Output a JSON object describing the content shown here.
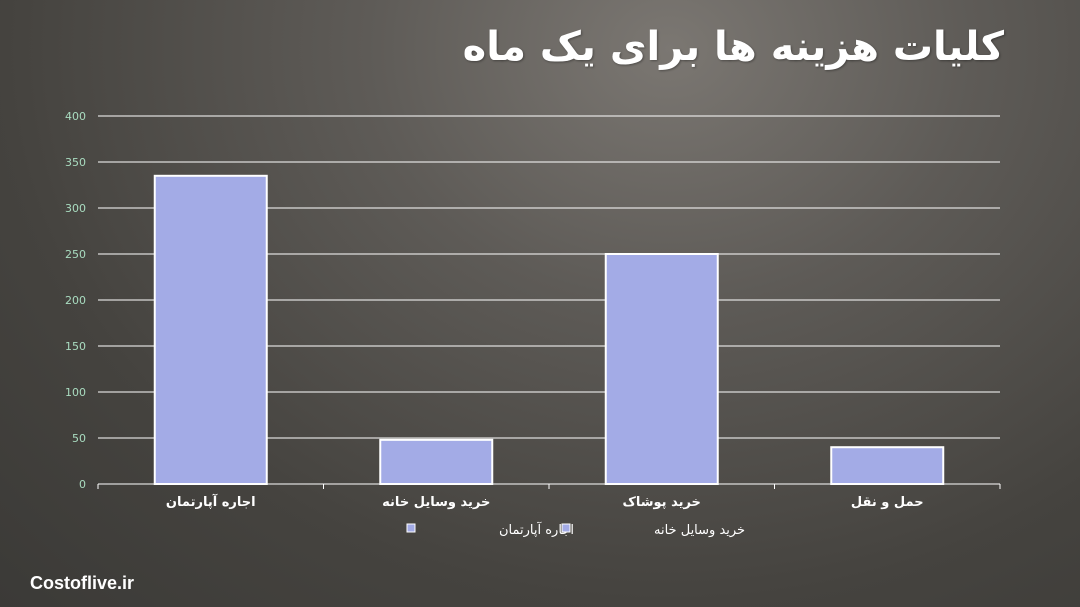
{
  "title": "کلیات هزینه ها برای یک ماه",
  "brand": "Costoflive.ir",
  "colors": {
    "bar_fill": "#a3abe6",
    "bar_stroke": "#ffffff",
    "grid": "#ffffff",
    "tick_text": "#a9dcc0",
    "category_text": "#ffffff"
  },
  "chart_data": {
    "type": "bar",
    "title": "کلیات هزینه ها برای یک ماه",
    "xlabel": "",
    "ylabel": "",
    "ylim": [
      0,
      400
    ],
    "yticks": [
      0,
      50,
      100,
      150,
      200,
      250,
      300,
      350,
      400
    ],
    "categories": [
      "اجاره آپارتمان",
      "خرید وسایل خانه",
      "خرید پوشاک",
      "حمل و نقل"
    ],
    "values": [
      335,
      48,
      250,
      40
    ],
    "grid": true,
    "legend_position": "bottom",
    "legend": [
      "اجاره آپارتمان",
      "خرید وسایل خانه"
    ]
  }
}
